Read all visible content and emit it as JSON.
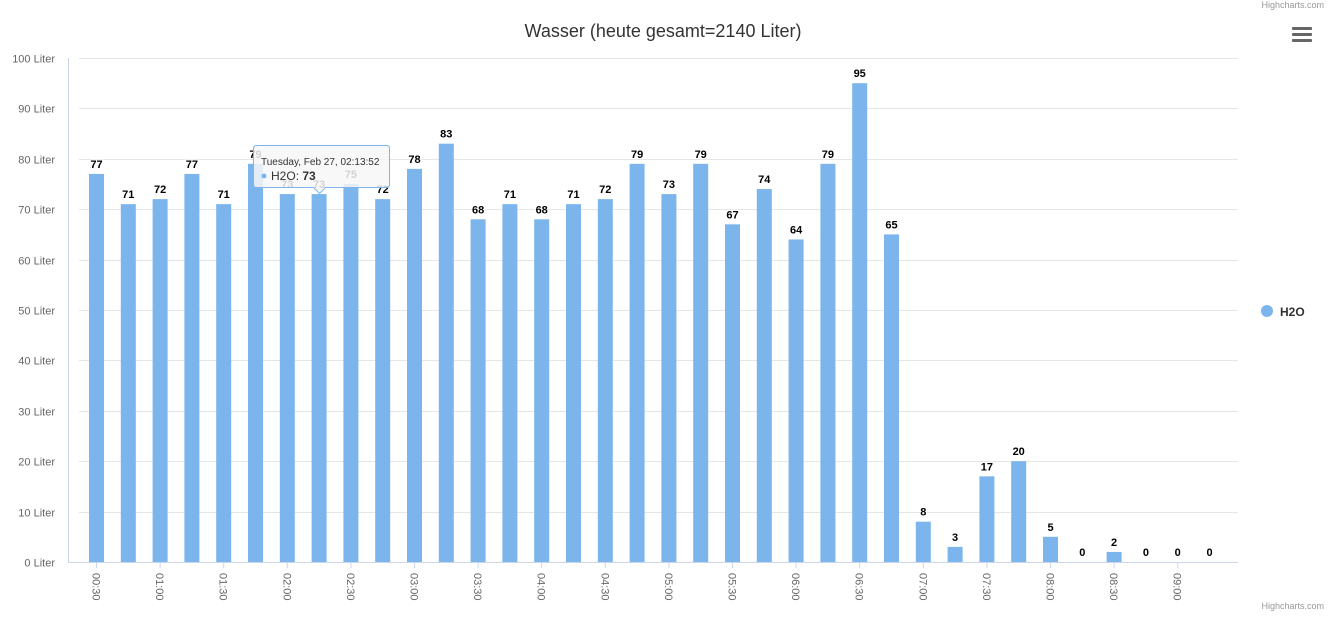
{
  "credits": "Highcharts.com",
  "menu_icon": "hamburger-menu-icon",
  "tooltip": {
    "header": "Tuesday, Feb 27, 02:13:52",
    "series": "H2O",
    "value_text": "73"
  },
  "chart_data": {
    "type": "bar",
    "title": "Wasser (heute gesamt=2140 Liter)",
    "xlabel": "",
    "ylabel": "",
    "y_unit": "Liter",
    "ylim": [
      0,
      100
    ],
    "yticks": [
      0,
      10,
      20,
      30,
      40,
      50,
      60,
      70,
      80,
      90,
      100
    ],
    "ytick_labels": [
      "0 Liter",
      "10 Liter",
      "20 Liter",
      "30 Liter",
      "40 Liter",
      "50 Liter",
      "60 Liter",
      "70 Liter",
      "80 Liter",
      "90 Liter",
      "100 Liter"
    ],
    "xtick_labels": [
      "00:30",
      "01:00",
      "01:30",
      "02:00",
      "02:30",
      "03:00",
      "03:30",
      "04:00",
      "04:30",
      "05:00",
      "05:30",
      "06:00",
      "06:30",
      "07:00",
      "07:30",
      "08:00",
      "08:30",
      "09:00"
    ],
    "series": [
      {
        "name": "H2O",
        "color": "#7cb5ec",
        "values": [
          77,
          71,
          72,
          77,
          71,
          79,
          73,
          73,
          75,
          72,
          78,
          83,
          68,
          71,
          68,
          71,
          72,
          79,
          73,
          79,
          67,
          74,
          64,
          79,
          95,
          65,
          8,
          3,
          17,
          20,
          5,
          0,
          2,
          0,
          0,
          0
        ]
      }
    ],
    "grid": true,
    "legend": "right"
  }
}
